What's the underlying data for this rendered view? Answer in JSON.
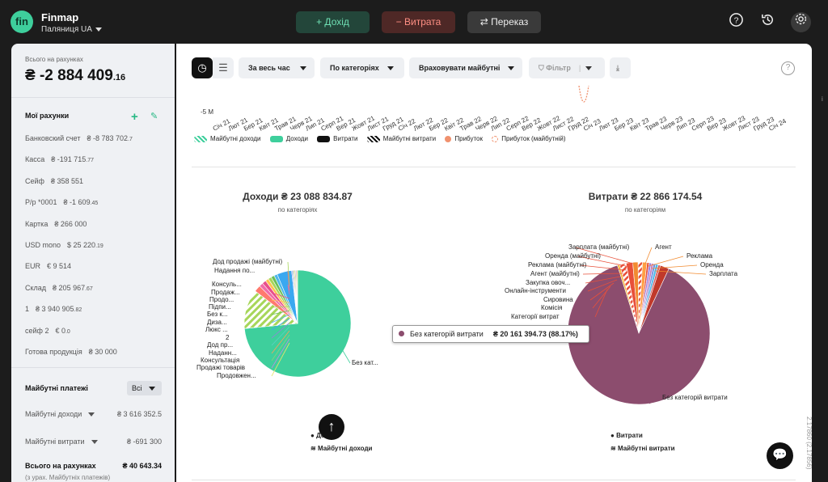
{
  "app": {
    "logo": "fin",
    "name": "Finmap",
    "org": "Паляниця UA"
  },
  "top_actions": {
    "income": "+ Дохід",
    "expense": "− Витрата",
    "transfer": "⇄ Переказ"
  },
  "top_icons": [
    "help-icon",
    "history-icon",
    "settings-icon"
  ],
  "sidebar": {
    "total_label": "Всього на рахунках",
    "total_value": "₴ -2 884 409",
    "total_cents": ".16",
    "accounts_title": "Мої рахунки",
    "accounts": [
      {
        "name": "Банковский счет",
        "value": "₴ -8 783 702",
        "cents": ".7"
      },
      {
        "name": "Касса",
        "value": "₴ -191 715",
        "cents": ".77"
      },
      {
        "name": "Сейф",
        "value": "₴ 358 551",
        "cents": ""
      },
      {
        "name": "Р/р *0001",
        "value": "₴ -1 609",
        "cents": ".45"
      },
      {
        "name": "Картка",
        "value": "₴ 266 000",
        "cents": ""
      },
      {
        "name": "USD mono",
        "value": "$ 25 220",
        "cents": ".19"
      },
      {
        "name": "EUR",
        "value": "€ 9 514",
        "cents": ""
      },
      {
        "name": "Склад",
        "value": "₴ 205 967",
        "cents": ".67"
      },
      {
        "name": "1",
        "value": "₴ 3 940 905",
        "cents": ".82"
      },
      {
        "name": "сейф 2",
        "value": "€ 0",
        "cents": ".0"
      },
      {
        "name": "Готова продукція",
        "value": "₴ 30 000",
        "cents": ""
      }
    ],
    "future_title": "Майбутні платежі",
    "future_filter": "Всі",
    "future_income_label": "Майбутні доходи",
    "future_income_value": "₴ 3 616 352.5",
    "future_expense_label": "Майбутні витрати",
    "future_expense_value": "₴ -691 300",
    "grand_label": "Всього на рахунках",
    "grand_value": "₴ 40 643.34",
    "grand_note": "(з урах. Майбутніх платежів)"
  },
  "filters": {
    "period": "За весь час",
    "grouping": "По категоріях",
    "future": "Враховувати майбутні",
    "filter": "Фільтр"
  },
  "timeline": {
    "y_label": "-5 M",
    "months": [
      "Січ 21",
      "Лют 21",
      "Бер 21",
      "Квіт 21",
      "Трав 21",
      "Черв 21",
      "Лип 21",
      "Серп 21",
      "Вер 21",
      "Жовт 21",
      "Лист 21",
      "Груд 21",
      "Січ 22",
      "Лют 22",
      "Бер 22",
      "Квіт 22",
      "Трав 22",
      "Черв 22",
      "Лип 22",
      "Серп 22",
      "Вер 22",
      "Жовт 22",
      "Лист 22",
      "Груд 22",
      "Січ 23",
      "Лют 23",
      "Бер 23",
      "Квіт 23",
      "Трав 23",
      "Черв 23",
      "Лип 23",
      "Серп 23",
      "Вер 23",
      "Жовт 23",
      "Лист 23",
      "Груд 23",
      "Січ 24"
    ],
    "legend": [
      "Майбутні доходи",
      "Доходи",
      "Витрати",
      "Майбутні витрати",
      "Прибуток",
      "Прибуток (майбутній)"
    ]
  },
  "income_chart": {
    "title": "Доходи ₴ 23 088 834.87",
    "subtitle": "по категоріях",
    "labels": [
      "Дод продажі (майбутні)",
      "Надання по...",
      "Консуль...",
      "Продаж...",
      "Продо...",
      "Підпи...",
      "Без к...",
      "Диза...",
      "Люкс ...",
      "2",
      "Дод пр...",
      "Наданн...",
      "Консультація",
      "Продажі товарів",
      "Продовжен...",
      "Без кат..."
    ],
    "legend": [
      "Дохід",
      "Майбутні доходи"
    ]
  },
  "expense_chart": {
    "title": "Витрати ₴ 22 866 174.54",
    "subtitle": "по категоріям",
    "labels_left": [
      "Зарплата (майбутні)",
      "Оренда (майбутні)",
      "Реклама (майбутні)",
      "Агент (майбутні)",
      "Закупка овоч...",
      "Онлайн-інструменти",
      "Сировина",
      "Комісія",
      "Категорії витрат"
    ],
    "labels_right": [
      "Агент",
      "Реклама",
      "Оренда",
      "Зарплата"
    ],
    "bottom_label": "Без категорій витрати",
    "tooltip_name": "Без категорій витрати",
    "tooltip_value": "₴ 20 161 394.73 (88.17%)",
    "legend": [
      "Витрати",
      "Майбутні витрати"
    ]
  },
  "chart_data": [
    {
      "type": "pie",
      "title": "Доходи ₴ 23 088 834.87",
      "categories": [
        "Без кат...",
        "Дод продажі (майбутні)",
        "Надання по...",
        "Консуль...",
        "Продаж...",
        "Продо...",
        "Підпи...",
        "Без к...",
        "Диза...",
        "Люкс ...",
        "2",
        "Дод пр...",
        "Наданн...",
        "Консультація",
        "Продажі товарів",
        "Продовжен..."
      ],
      "values": [
        74,
        12,
        2,
        1.2,
        1.2,
        1,
        1,
        1,
        1,
        4.5,
        0.3,
        0.3,
        0.3,
        0.3,
        0.3,
        0.3
      ]
    },
    {
      "type": "pie",
      "title": "Витрати ₴ 22 866 174.54",
      "categories": [
        "Без категорій витрати",
        "Агент",
        "Реклама",
        "Оренда",
        "Зарплата",
        "Зарплата (майбутні)",
        "Оренда (майбутні)",
        "Реклама (майбутні)",
        "Агент (майбутні)",
        "Закупка овоч...",
        "Онлайн-інструменти",
        "Сировина",
        "Комісія",
        "Категорії витрат"
      ],
      "values": [
        88.17,
        0.5,
        1.5,
        1.5,
        1.2,
        1,
        1,
        0.5,
        0.5,
        0.5,
        0.5,
        0.6,
        0.5,
        2.0
      ]
    }
  ],
  "side_meta": {
    "version": "2.17860 (2.17856)",
    "side_label": "i"
  }
}
